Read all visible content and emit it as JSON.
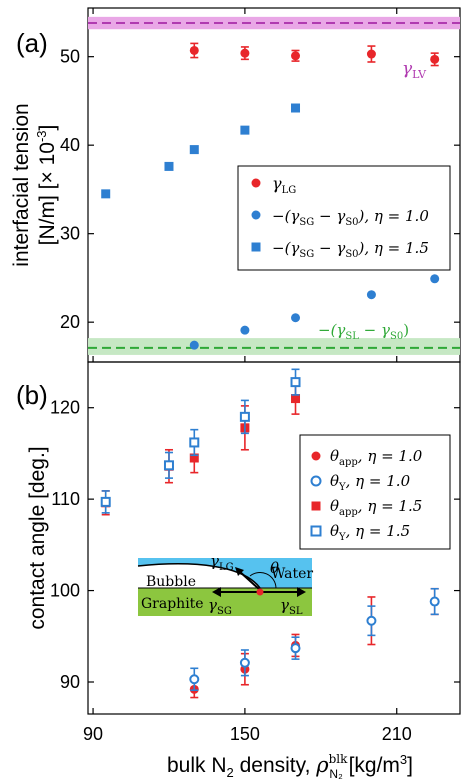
{
  "chart_data": [
    {
      "type": "scatter",
      "panel_label": "(a)",
      "ylabel_line1": "interfacial tension",
      "ylabel_line2_prefix": "[N/m] [",
      "ylabel_line2_suffix": "]",
      "ylabel_multiplier": "× 10",
      "ylabel_exponent": "-3",
      "yticks": [
        "20",
        "30",
        "40",
        "50"
      ],
      "ylim": [
        15.5,
        55.5
      ],
      "xlim": [
        88,
        235
      ],
      "series": [
        {
          "name": "γLG",
          "marker": "circle",
          "color": "#e8262a",
          "x": [
            130,
            150,
            170,
            200,
            225
          ],
          "y": [
            50.7,
            50.4,
            50.1,
            50.3,
            49.7
          ],
          "err": [
            0.8,
            0.7,
            0.6,
            0.9,
            0.7
          ]
        },
        {
          "name": "−(γSG − γS0), η = 1.0",
          "marker": "circle",
          "color": "#2e7fd1",
          "x": [
            130,
            150,
            170,
            200,
            225
          ],
          "y": [
            17.4,
            19.1,
            20.5,
            23.1,
            24.9
          ]
        },
        {
          "name": "−(γSG − γS0), η = 1.5",
          "marker": "square",
          "color": "#2e7fd1",
          "x": [
            95,
            120,
            130,
            150,
            170
          ],
          "y": [
            34.5,
            37.6,
            39.5,
            41.7,
            44.2
          ]
        }
      ],
      "legend": [
        {
          "sym": "γ",
          "sub": "LG",
          "rest": ""
        },
        {
          "sym": "−(γ",
          "sub": "SG",
          "rest": " − γ",
          "sub2": "S0",
          "tail": "), η = 1.0"
        },
        {
          "sym": "−(γ",
          "sub": "SG",
          "rest": " − γ",
          "sub2": "S0",
          "tail": "), η = 1.5"
        }
      ],
      "hlines": [
        {
          "name": "γLV",
          "label_sym": "γ",
          "label_sub": "LV",
          "y": 53.8,
          "band": [
            53.1,
            54.5
          ],
          "color": "#b03ab0",
          "band_color": "#e9a7e6"
        },
        {
          "name": "−(γSL − γS0)",
          "label_prefix": "−(γ",
          "label_sub": "SL",
          "label_mid": " − γ",
          "label_sub2": "S0",
          "label_tail": ")",
          "y": 17.1,
          "band": [
            16.3,
            18.2
          ],
          "color": "#2ea836",
          "band_color": "#c6e8c4"
        }
      ]
    },
    {
      "type": "scatter",
      "panel_label": "(b)",
      "ylabel": "contact angle [deg.]",
      "yticks": [
        "90",
        "100",
        "110",
        "120"
      ],
      "ylim": [
        86.5,
        125
      ],
      "xticks": [
        "90",
        "150",
        "210"
      ],
      "xtick_values": [
        90,
        150,
        210
      ],
      "xlim": [
        88,
        235
      ],
      "xlabel_prefix": "bulk N",
      "xlabel_sub": "2",
      "xlabel_mid": " density, ",
      "xlabel_rho": "ρ",
      "xlabel_rho_sup": "blk",
      "xlabel_rho_sub": "N₂",
      "xlabel_tail": " [kg/m",
      "xlabel_unit_sup": "3",
      "xlabel_end": "]",
      "series": [
        {
          "name": "θapp, η = 1.0",
          "marker": "circle",
          "filled": true,
          "color": "#e8262a",
          "x": [
            130,
            150,
            170,
            200,
            225
          ],
          "y": [
            89.2,
            91.4,
            94.0,
            96.7,
            98.8
          ],
          "err": [
            0.9,
            1.7,
            1.2,
            2.6,
            1.4
          ]
        },
        {
          "name": "θY, η = 1.0",
          "marker": "circle",
          "filled": false,
          "color": "#2e7fd1",
          "x": [
            130,
            150,
            170,
            200,
            225
          ],
          "y": [
            90.3,
            92.1,
            93.7,
            96.7,
            98.8
          ],
          "err": [
            1.2,
            1.4,
            1.2,
            1.6,
            1.4
          ]
        },
        {
          "name": "θapp, η = 1.5",
          "marker": "square",
          "filled": true,
          "color": "#e8262a",
          "x": [
            95,
            120,
            130,
            150,
            170
          ],
          "y": [
            109.6,
            113.6,
            114.5,
            117.8,
            121.0
          ],
          "err": [
            1.3,
            1.8,
            1.6,
            2.4,
            1.7
          ]
        },
        {
          "name": "θY, η = 1.5",
          "marker": "square",
          "filled": false,
          "color": "#2e7fd1",
          "x": [
            95,
            120,
            130,
            150,
            170
          ],
          "y": [
            109.7,
            113.7,
            116.2,
            119.0,
            122.8
          ],
          "err": [
            1.2,
            1.4,
            1.4,
            1.8,
            1.4
          ]
        }
      ],
      "legend": [
        {
          "sym": "θ",
          "sub": "app",
          "tail": ", η = 1.0"
        },
        {
          "sym": "θ",
          "sub": "Y",
          "tail": ", η = 1.0"
        },
        {
          "sym": "θ",
          "sub": "app",
          "tail": ", η = 1.5"
        },
        {
          "sym": "θ",
          "sub": "Y",
          "tail": ", η = 1.5"
        }
      ],
      "inset": {
        "water_label": "Water",
        "bubble_label": "Bubble",
        "graphite_label": "Graphite",
        "gamma_lg": {
          "sym": "γ",
          "sub": "LG"
        },
        "gamma_sg": {
          "sym": "γ",
          "sub": "SG"
        },
        "gamma_sl": {
          "sym": "γ",
          "sub": "SL"
        },
        "theta": "θ",
        "water_color": "#56c2ef",
        "graphite_color": "#8cc63f"
      }
    }
  ]
}
